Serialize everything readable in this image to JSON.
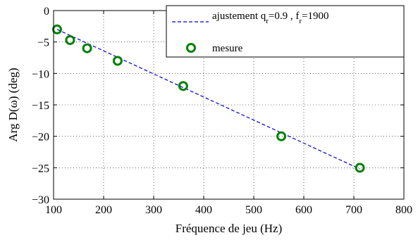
{
  "chart_data": {
    "type": "scatter",
    "title": "",
    "xlabel": "Fréquence de jeu (Hz)",
    "ylabel": "Arg D(ω) (deg)",
    "xlim": [
      100,
      800
    ],
    "ylim": [
      -30,
      0
    ],
    "xticks": [
      100,
      200,
      300,
      400,
      500,
      600,
      700,
      800
    ],
    "yticks": [
      0,
      -5,
      -10,
      -15,
      -20,
      -25,
      -30
    ],
    "grid": true,
    "legend_position": "top-right",
    "series": [
      {
        "name": "ajustement q_r=0.9 , f_r=1900",
        "legend_main": "ajustement q",
        "legend_sub1": "r",
        "legend_mid": "=0.9 , f",
        "legend_sub2": "r",
        "legend_end": "=1900",
        "kind": "line",
        "style": "dashed",
        "color": "#0000cc",
        "x": [
          107,
          712
        ],
        "y": [
          -3.0,
          -25.2
        ]
      },
      {
        "name": "mesure",
        "kind": "markers",
        "marker": "circle",
        "color": "#008000",
        "x": [
          107,
          133,
          167,
          228,
          359,
          555,
          712
        ],
        "y": [
          -3,
          -4.7,
          -6,
          -8,
          -12,
          -20,
          -25
        ]
      }
    ]
  }
}
